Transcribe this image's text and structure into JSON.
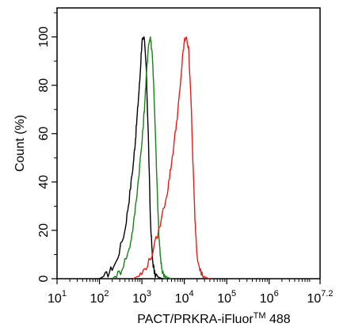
{
  "chart_data": {
    "type": "line",
    "title": "",
    "xlabel": "PACT/PRKRA-iFluor",
    "xlabel_tm": "TM",
    "xlabel_suffix": " 488",
    "ylabel": "Count  (%)",
    "x_scale": "log",
    "xlim": [
      10,
      15848931.92
    ],
    "ylim": [
      0,
      112
    ],
    "x_ticks": [
      {
        "base": "10",
        "exp": "1",
        "value": 10
      },
      {
        "base": "10",
        "exp": "2",
        "value": 100
      },
      {
        "base": "10",
        "exp": "3",
        "value": 1000
      },
      {
        "base": "10",
        "exp": "4",
        "value": 10000
      },
      {
        "base": "10",
        "exp": "5",
        "value": 100000
      },
      {
        "base": "10",
        "exp": "6",
        "value": 1000000
      },
      {
        "base": "10",
        "exp": "7.2",
        "value": 15848931.92
      }
    ],
    "y_ticks": [
      0,
      20,
      40,
      60,
      80,
      100
    ],
    "grid": false,
    "legend": "none",
    "series": [
      {
        "color": "#000000",
        "x": [
          100,
          159,
          251,
          398,
          501,
          631,
          708,
          794,
          891,
          1000,
          1122,
          1259,
          1413,
          1585,
          1778,
          1995,
          2512,
          3162
        ],
        "y": [
          0,
          2,
          7,
          20,
          33,
          48,
          58,
          70,
          82,
          98,
          100,
          88,
          60,
          25,
          8,
          2,
          0.5,
          0
        ]
      },
      {
        "color": "#1a7f1a",
        "x": [
          200,
          316,
          501,
          631,
          794,
          1000,
          1122,
          1259,
          1413,
          1585,
          1778,
          1995,
          2239,
          2512,
          2818,
          3162,
          3981,
          5012
        ],
        "y": [
          0,
          3,
          12,
          22,
          38,
          56,
          68,
          82,
          96,
          100,
          92,
          70,
          42,
          18,
          6,
          2,
          0.5,
          0
        ]
      },
      {
        "color": "#e0201c",
        "x": [
          631,
          1000,
          1585,
          2512,
          3981,
          5012,
          6310,
          7943,
          8913,
          10000,
          11220,
          12589,
          14125,
          15849,
          17783,
          19953,
          25119,
          31623,
          39811
        ],
        "y": [
          0,
          2,
          8,
          20,
          36,
          48,
          62,
          78,
          90,
          98,
          100,
          95,
          78,
          50,
          25,
          10,
          2,
          0.5,
          0
        ]
      }
    ]
  }
}
